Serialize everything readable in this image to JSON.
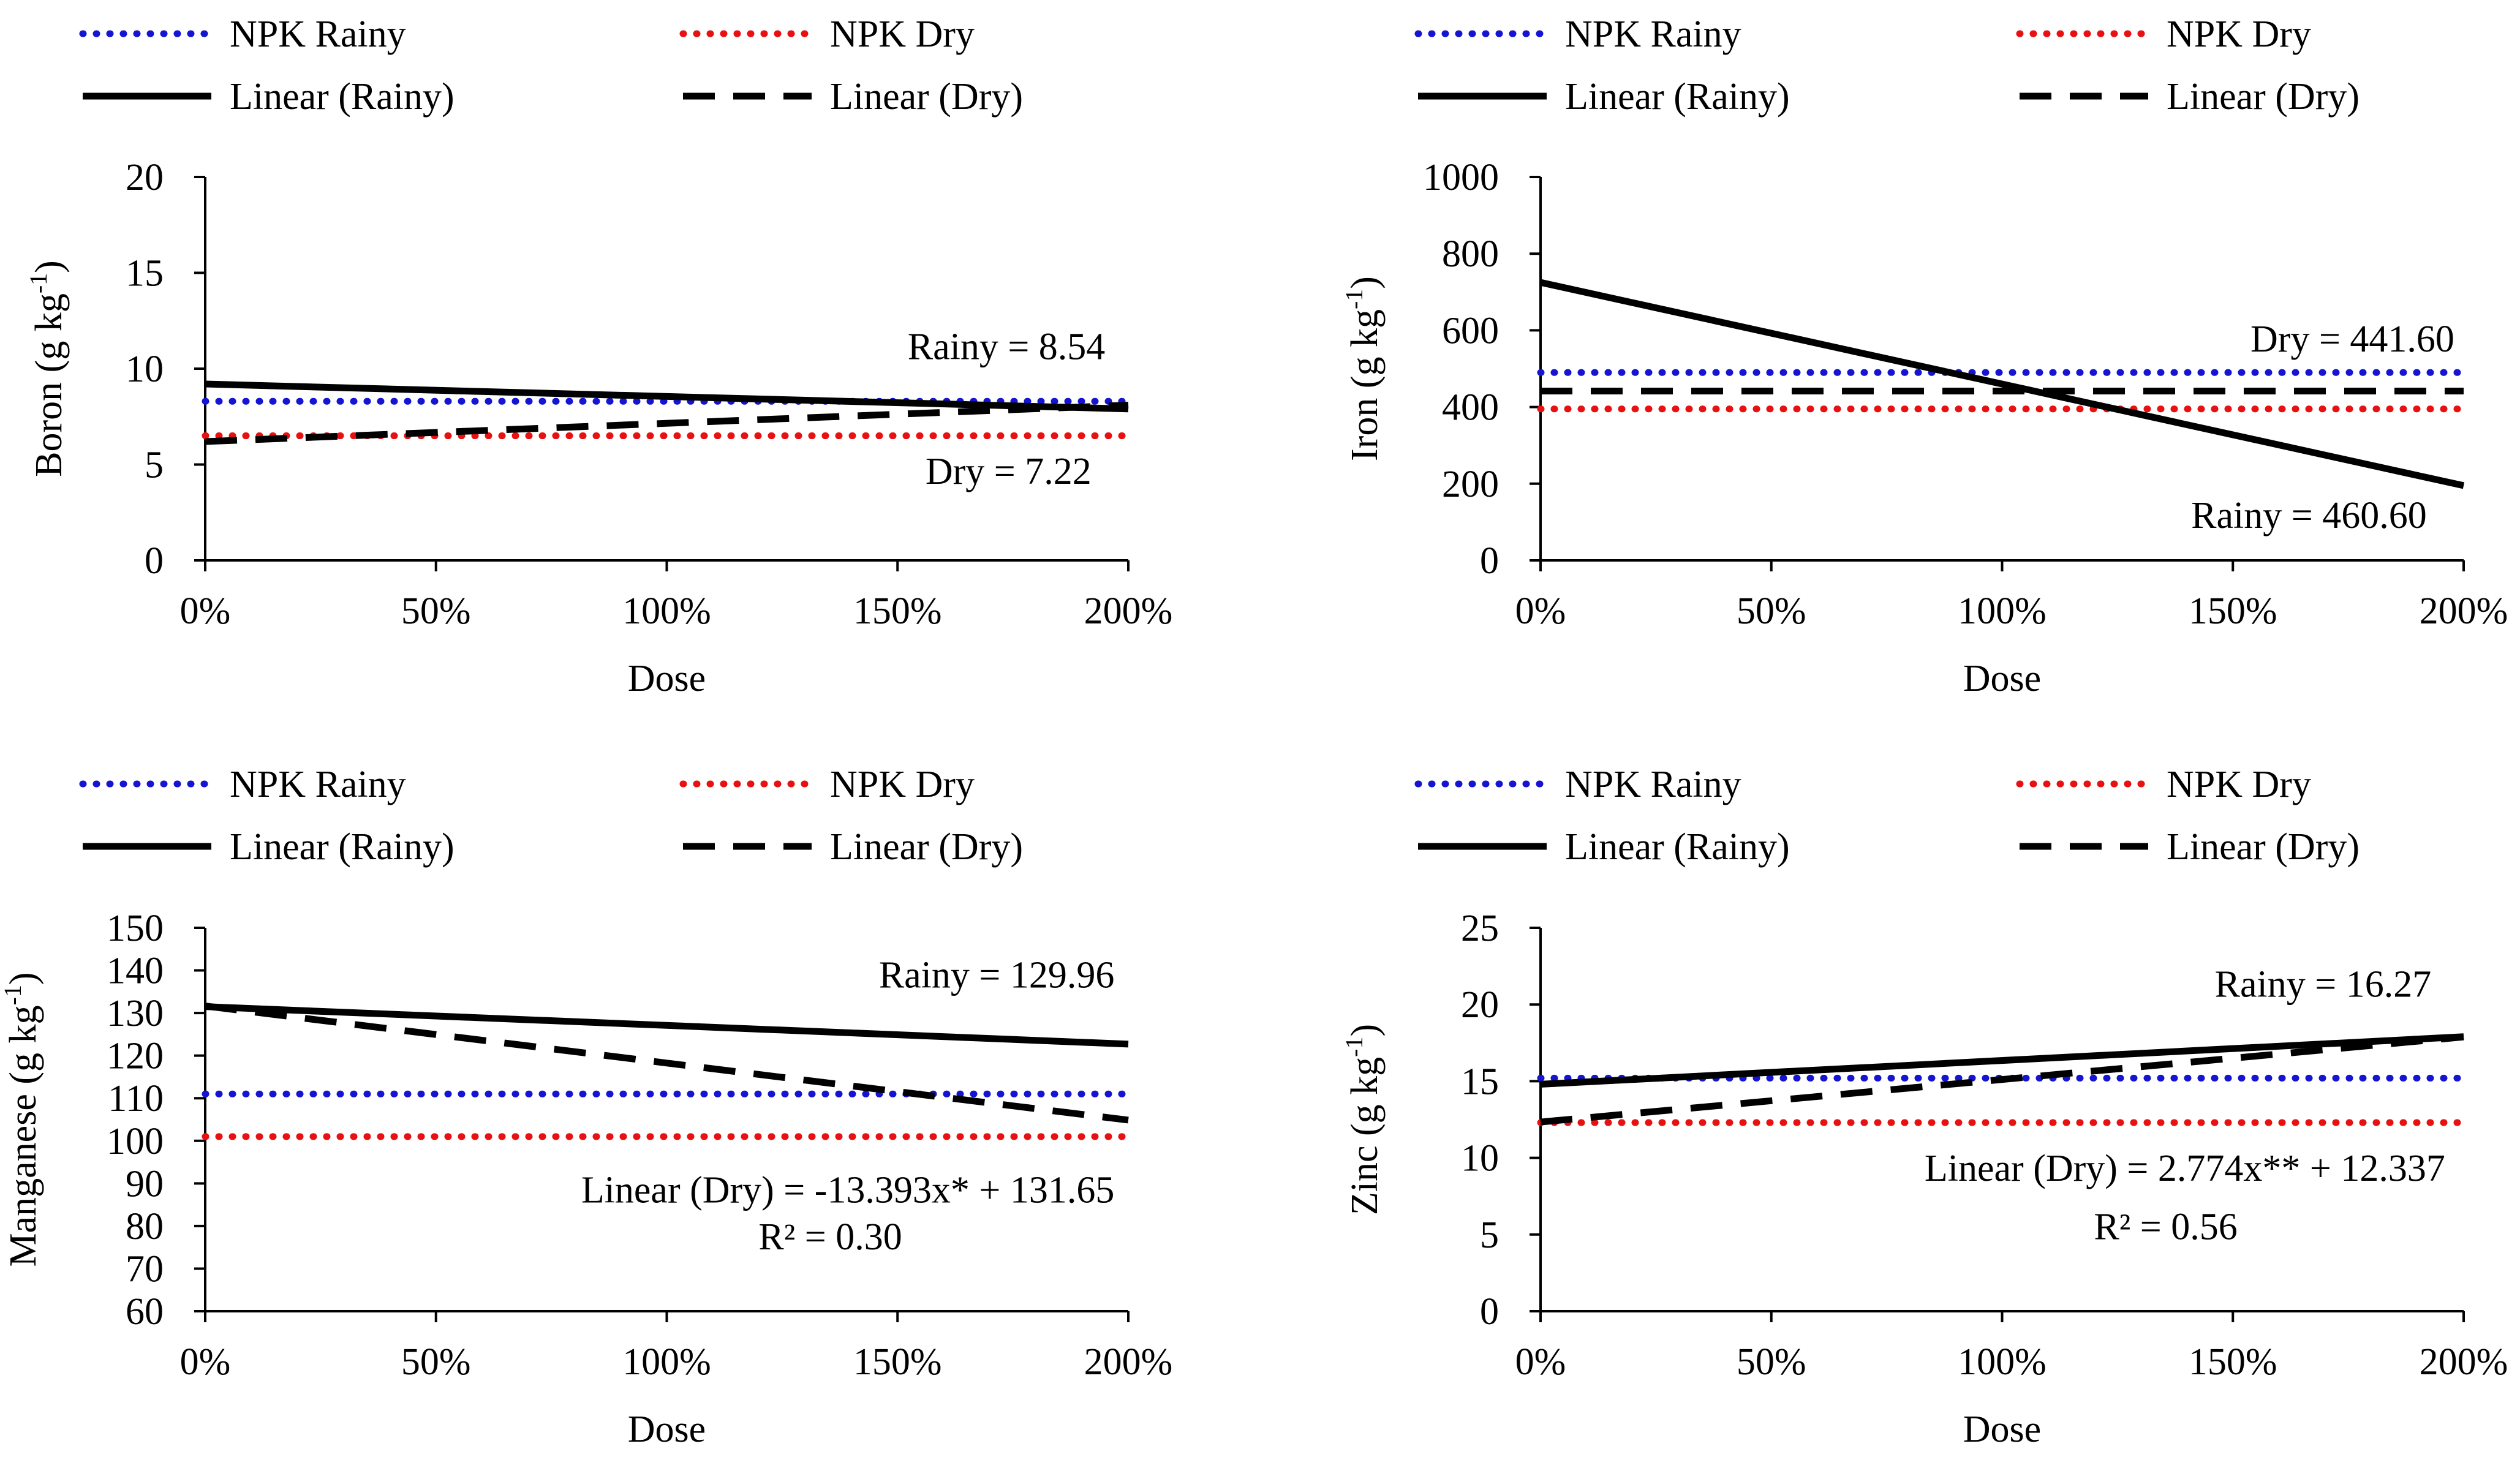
{
  "colors": {
    "npk_rainy": "#1414d2",
    "npk_dry": "#e81010",
    "linear": "#000000",
    "axis": "#000000"
  },
  "legend": {
    "npk_rainy": "NPK Rainy",
    "npk_dry": "NPK Dry",
    "linear_rainy": "Linear (Rainy)",
    "linear_dry": "Linear (Dry)"
  },
  "chart_data": [
    {
      "id": "boron",
      "type": "line",
      "title": "",
      "xlabel": "Dose",
      "ylabel_main": "Boron (g kg",
      "ylabel_sup": "-1",
      "ylabel_close": ")",
      "categories": [
        "0%",
        "50%",
        "100%",
        "150%",
        "200%"
      ],
      "x": [
        0,
        0.5,
        1.0,
        1.5,
        2.0
      ],
      "ylim": [
        0,
        20
      ],
      "yticks": [
        0,
        5,
        10,
        15,
        20
      ],
      "series": [
        {
          "name": "NPK Rainy",
          "key": "npk_rainy",
          "x": [
            0,
            2
          ],
          "y": [
            8.3,
            8.3
          ]
        },
        {
          "name": "NPK Dry",
          "key": "npk_dry",
          "x": [
            0,
            2
          ],
          "y": [
            6.5,
            6.5
          ]
        },
        {
          "name": "Linear (Rainy)",
          "key": "linear_rainy",
          "x": [
            0,
            2
          ],
          "y": [
            9.2,
            7.9
          ]
        },
        {
          "name": "Linear (Dry)",
          "key": "linear_dry",
          "x": [
            0,
            2
          ],
          "y": [
            6.2,
            8.1
          ]
        }
      ],
      "annotations": [
        {
          "text": "Rainy = 8.54",
          "x": 1.95,
          "y": 10.5
        },
        {
          "text": "Dry = 7.22",
          "x": 1.92,
          "y": 4.0
        }
      ]
    },
    {
      "id": "iron",
      "type": "line",
      "title": "",
      "xlabel": "Dose",
      "ylabel_main": "Iron (g kg",
      "ylabel_sup": "-1",
      "ylabel_close": ")",
      "categories": [
        "0%",
        "50%",
        "100%",
        "150%",
        "200%"
      ],
      "x": [
        0,
        0.5,
        1.0,
        1.5,
        2.0
      ],
      "ylim": [
        0,
        1000
      ],
      "yticks": [
        0,
        200,
        400,
        600,
        800,
        1000
      ],
      "series": [
        {
          "name": "NPK Rainy",
          "key": "npk_rainy",
          "x": [
            0,
            2
          ],
          "y": [
            490,
            490
          ]
        },
        {
          "name": "NPK Dry",
          "key": "npk_dry",
          "x": [
            0,
            2
          ],
          "y": [
            395,
            395
          ]
        },
        {
          "name": "Linear (Rainy)",
          "key": "linear_rainy",
          "x": [
            0,
            2
          ],
          "y": [
            725,
            195
          ]
        },
        {
          "name": "Linear (Dry)",
          "key": "linear_dry",
          "x": [
            0,
            2
          ],
          "y": [
            441.6,
            441.6
          ]
        }
      ],
      "annotations": [
        {
          "text": "Dry = 441.60",
          "x": 1.98,
          "y": 545
        },
        {
          "text": "Rainy = 460.60",
          "x": 1.92,
          "y": 85
        }
      ]
    },
    {
      "id": "manganese",
      "type": "line",
      "title": "",
      "xlabel": "Dose",
      "ylabel_main": "Manganese (g kg",
      "ylabel_sup": "-1",
      "ylabel_close": ")",
      "categories": [
        "0%",
        "50%",
        "100%",
        "150%",
        "200%"
      ],
      "x": [
        0,
        0.5,
        1.0,
        1.5,
        2.0
      ],
      "ylim": [
        60,
        150
      ],
      "yticks": [
        60,
        70,
        80,
        90,
        100,
        110,
        120,
        130,
        140,
        150
      ],
      "series": [
        {
          "name": "NPK Rainy",
          "key": "npk_rainy",
          "x": [
            0,
            2
          ],
          "y": [
            111,
            111
          ]
        },
        {
          "name": "NPK Dry",
          "key": "npk_dry",
          "x": [
            0,
            2
          ],
          "y": [
            101,
            101
          ]
        },
        {
          "name": "Linear (Rainy)",
          "key": "linear_rainy",
          "x": [
            0,
            2
          ],
          "y": [
            131.5,
            122.7
          ]
        },
        {
          "name": "Linear (Dry)",
          "key": "linear_dry",
          "x": [
            0,
            2
          ],
          "y": [
            131.65,
            104.86
          ]
        }
      ],
      "annotations": [
        {
          "text": "Rainy = 129.96",
          "x": 1.97,
          "y": 136
        },
        {
          "text": "Linear (Dry) = -13.393x* + 131.65",
          "x": 1.97,
          "y": 85.5
        },
        {
          "text": "R² = 0.30",
          "x": 1.51,
          "y": 74.5
        }
      ]
    },
    {
      "id": "zinc",
      "type": "line",
      "title": "",
      "xlabel": "Dose",
      "ylabel_main": "Zinc (g kg",
      "ylabel_sup": "-1",
      "ylabel_close": ")",
      "categories": [
        "0%",
        "50%",
        "100%",
        "150%",
        "200%"
      ],
      "x": [
        0,
        0.5,
        1.0,
        1.5,
        2.0
      ],
      "ylim": [
        0,
        25
      ],
      "yticks": [
        0,
        5,
        10,
        15,
        20,
        25
      ],
      "series": [
        {
          "name": "NPK Rainy",
          "key": "npk_rainy",
          "x": [
            0,
            2
          ],
          "y": [
            15.2,
            15.2
          ]
        },
        {
          "name": "NPK Dry",
          "key": "npk_dry",
          "x": [
            0,
            2
          ],
          "y": [
            12.3,
            12.3
          ]
        },
        {
          "name": "Linear (Rainy)",
          "key": "linear_rainy",
          "x": [
            0,
            2
          ],
          "y": [
            14.8,
            17.9
          ]
        },
        {
          "name": "Linear (Dry)",
          "key": "linear_dry",
          "x": [
            0,
            2
          ],
          "y": [
            12.337,
            17.885
          ]
        }
      ],
      "annotations": [
        {
          "text": "Rainy = 16.27",
          "x": 1.93,
          "y": 20.5
        },
        {
          "text": "Linear (Dry) = 2.774x** + 12.337",
          "x": 1.96,
          "y": 8.5
        },
        {
          "text": "R² = 0.56",
          "x": 1.51,
          "y": 4.7
        }
      ]
    }
  ]
}
